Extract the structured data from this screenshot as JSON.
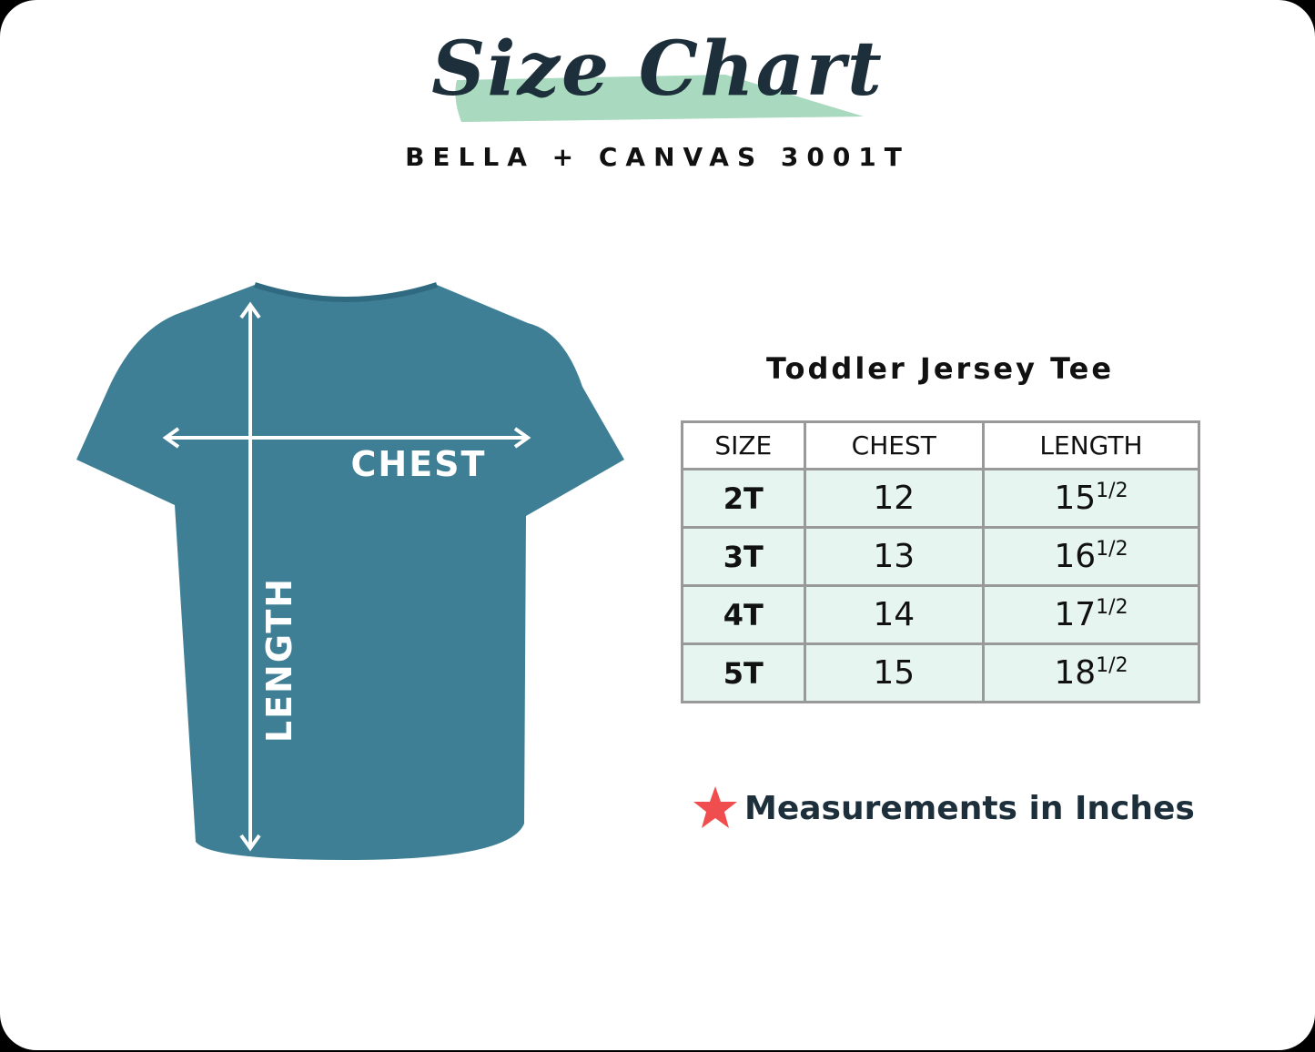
{
  "header": {
    "title": "Size Chart",
    "subtitle": "BELLA + CANVAS 3001T"
  },
  "shirt": {
    "chest_label": "CHEST",
    "length_label": "LENGTH",
    "color": "#3f7f95"
  },
  "table": {
    "title": "Toddler Jersey Tee",
    "columns": [
      "SIZE",
      "CHEST",
      "LENGTH"
    ],
    "rows": [
      {
        "size": "2T",
        "chest": "12",
        "length": "15",
        "length_fraction": "1/2"
      },
      {
        "size": "3T",
        "chest": "13",
        "length": "16",
        "length_fraction": "1/2"
      },
      {
        "size": "4T",
        "chest": "14",
        "length": "17",
        "length_fraction": "1/2"
      },
      {
        "size": "5T",
        "chest": "15",
        "length": "18",
        "length_fraction": "1/2"
      }
    ],
    "row_color": "#e6f5ef"
  },
  "note": {
    "icon": "star-icon",
    "text": "Measurements in Inches",
    "star_color": "#f04e4e"
  },
  "accent_brush_color": "#a9d9be"
}
